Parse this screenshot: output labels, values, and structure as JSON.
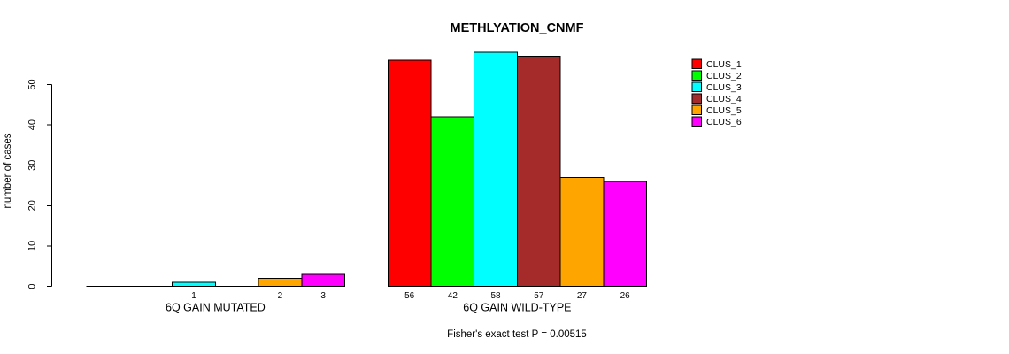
{
  "page": {
    "background": "#FFFFFF"
  },
  "chart_data": {
    "type": "bar",
    "title": "METHLYATION_CNMF",
    "ylabel": "number of cases",
    "xlabel": "",
    "ylim": [
      0,
      50
    ],
    "yticks": [
      0,
      10,
      20,
      30,
      40,
      50
    ],
    "grid": false,
    "legend_position": "right",
    "series": [
      {
        "name": "CLUS_1",
        "color": "#FF0000"
      },
      {
        "name": "CLUS_2",
        "color": "#00FF00"
      },
      {
        "name": "CLUS_3",
        "color": "#00FFFF"
      },
      {
        "name": "CLUS_4",
        "color": "#A52A2A"
      },
      {
        "name": "CLUS_5",
        "color": "#FFA500"
      },
      {
        "name": "CLUS_6",
        "color": "#FF00FF"
      }
    ],
    "groups": [
      {
        "label": "6Q GAIN MUTATED",
        "values": [
          0,
          0,
          1,
          0,
          2,
          3
        ],
        "bar_labels": [
          "",
          "",
          "1",
          "",
          "2",
          "3"
        ]
      },
      {
        "label": "6Q GAIN WILD-TYPE",
        "values": [
          56,
          42,
          58,
          57,
          27,
          26
        ],
        "bar_labels": [
          "56",
          "42",
          "58",
          "57",
          "27",
          "26"
        ]
      }
    ],
    "footnote": "Fisher's exact test P = 0.00515"
  }
}
